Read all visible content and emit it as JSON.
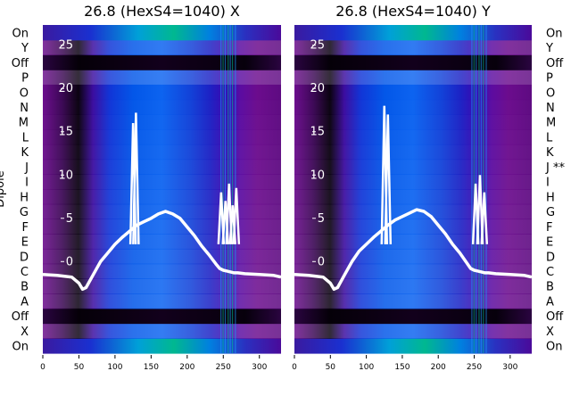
{
  "chart_data": [
    {
      "type": "heatmap",
      "title": "26.8 (HexS4=1040) X",
      "side": "X",
      "ylabel": "Dipole",
      "x_ticks": [
        0,
        50,
        100,
        150,
        200,
        250,
        300
      ],
      "xlim": [
        0,
        330
      ],
      "inner_y_ticks": [
        0,
        5,
        10,
        15,
        20,
        25
      ],
      "row_labels": [
        "On",
        "X",
        "Off",
        "A",
        "B",
        "C",
        "D",
        "E",
        "F",
        "G",
        "H",
        "I",
        "J",
        "K",
        "L",
        "M",
        "N",
        "O",
        "P",
        "Off",
        "Y",
        "On"
      ],
      "overlay_lines": [
        {
          "x": [
            0,
            20,
            40,
            50,
            55,
            60,
            70,
            80,
            90,
            100,
            110,
            120,
            130,
            140,
            150,
            160,
            170,
            180,
            190,
            200,
            210,
            220,
            230,
            240,
            245,
            250,
            255,
            260,
            265,
            270,
            280,
            300,
            320,
            330
          ],
          "y": [
            -1.5,
            -1.6,
            -1.8,
            -2.5,
            -3.2,
            -3.0,
            -1.5,
            0,
            1.0,
            2.0,
            2.8,
            3.5,
            4.2,
            4.6,
            5.0,
            5.5,
            5.8,
            5.5,
            5.0,
            4.0,
            3.0,
            1.8,
            0.8,
            -0.3,
            -0.8,
            -1.0,
            -1.1,
            -1.2,
            -1.3,
            -1.3,
            -1.4,
            -1.5,
            -1.6,
            -1.8
          ]
        }
      ],
      "spikes": [
        {
          "x": 125,
          "y": 16
        },
        {
          "x": 129,
          "y": 17.2
        },
        {
          "x": 247,
          "y": 8
        },
        {
          "x": 253,
          "y": 7
        },
        {
          "x": 258,
          "y": 9
        },
        {
          "x": 263,
          "y": 6.5
        },
        {
          "x": 268,
          "y": 8.5
        }
      ]
    },
    {
      "type": "heatmap",
      "title": "26.8 (HexS4=1040) Y",
      "side": "Y",
      "ylabel": "",
      "x_ticks": [
        0,
        50,
        100,
        150,
        200,
        250,
        300
      ],
      "xlim": [
        0,
        330
      ],
      "inner_y_ticks": [
        0,
        5,
        10,
        15,
        20,
        25
      ],
      "row_labels": [
        "On",
        "X",
        "Off",
        "A",
        "B",
        "C",
        "D",
        "E",
        "F",
        "G",
        "H",
        "I",
        "J **",
        "K",
        "L",
        "M",
        "N",
        "O",
        "P",
        "Off",
        "Y",
        "On"
      ],
      "overlay_lines": [
        {
          "x": [
            0,
            20,
            40,
            50,
            55,
            60,
            70,
            80,
            90,
            100,
            110,
            120,
            130,
            140,
            150,
            160,
            170,
            180,
            190,
            200,
            210,
            220,
            230,
            240,
            245,
            250,
            255,
            260,
            265,
            270,
            280,
            300,
            320,
            330
          ],
          "y": [
            -1.5,
            -1.6,
            -1.8,
            -2.5,
            -3.2,
            -3.0,
            -1.5,
            0,
            1.2,
            2.0,
            2.8,
            3.5,
            4.2,
            4.8,
            5.2,
            5.6,
            6.0,
            5.8,
            5.2,
            4.2,
            3.2,
            2.0,
            1.0,
            -0.2,
            -0.8,
            -1.0,
            -1.1,
            -1.2,
            -1.3,
            -1.3,
            -1.4,
            -1.5,
            -1.6,
            -1.8
          ]
        }
      ],
      "spikes": [
        {
          "x": 125,
          "y": 18
        },
        {
          "x": 130,
          "y": 17
        },
        {
          "x": 252,
          "y": 9
        },
        {
          "x": 258,
          "y": 10
        },
        {
          "x": 264,
          "y": 8
        }
      ]
    }
  ]
}
